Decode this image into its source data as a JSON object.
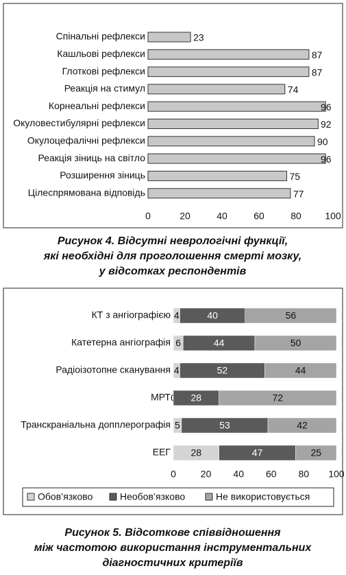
{
  "chart_data": [
    {
      "type": "bar",
      "orientation": "horizontal",
      "title": [
        "Рисунок 4. Відсутні неврологічні функції,",
        "які необхідні для проголошення смерті мозку,",
        "у відсотках респондентів"
      ],
      "categories": [
        "Спінальні рефлекси",
        "Кашльові рефлекси",
        "Глоткові рефлекси",
        "Реакція на стимул",
        "Корнеальні рефлекси",
        "Окуловестибулярні рефлекси",
        "Окулоцефалічні рефлекси",
        "Реакція зіниць на світло",
        "Розширення зіниць",
        "Цілеспрямована відповідь"
      ],
      "values": [
        23,
        87,
        87,
        74,
        96,
        92,
        90,
        96,
        75,
        77
      ],
      "color": "#c8c8c8",
      "xlim": [
        0,
        100
      ],
      "xticks": [
        0,
        20,
        40,
        60,
        80,
        100
      ]
    },
    {
      "type": "stacked-bar",
      "orientation": "horizontal",
      "title": [
        "Рисунок 5. Відсоткове співвідношення",
        "між частотою використання інструментальних",
        "діагностичних критеріїв"
      ],
      "categories": [
        "КТ з ангіографією",
        "Катетерна ангіографія",
        "Радіоізотопне сканування",
        "МРТ",
        "Транскраніальна допплерографія",
        "ЕЕГ"
      ],
      "series": [
        {
          "name": "Обов’язково",
          "color": "#d4d4d4",
          "values": [
            4,
            6,
            4,
            0,
            5,
            28
          ]
        },
        {
          "name": "Необов’язково",
          "color": "#5a5a5a",
          "values": [
            40,
            44,
            52,
            28,
            53,
            47
          ]
        },
        {
          "name": "Не використовується",
          "color": "#a4a4a4",
          "values": [
            56,
            50,
            44,
            72,
            42,
            25
          ]
        }
      ],
      "xlim": [
        0,
        100
      ],
      "xticks": [
        0,
        20,
        40,
        60,
        80,
        100
      ],
      "legend": "bottom"
    }
  ]
}
